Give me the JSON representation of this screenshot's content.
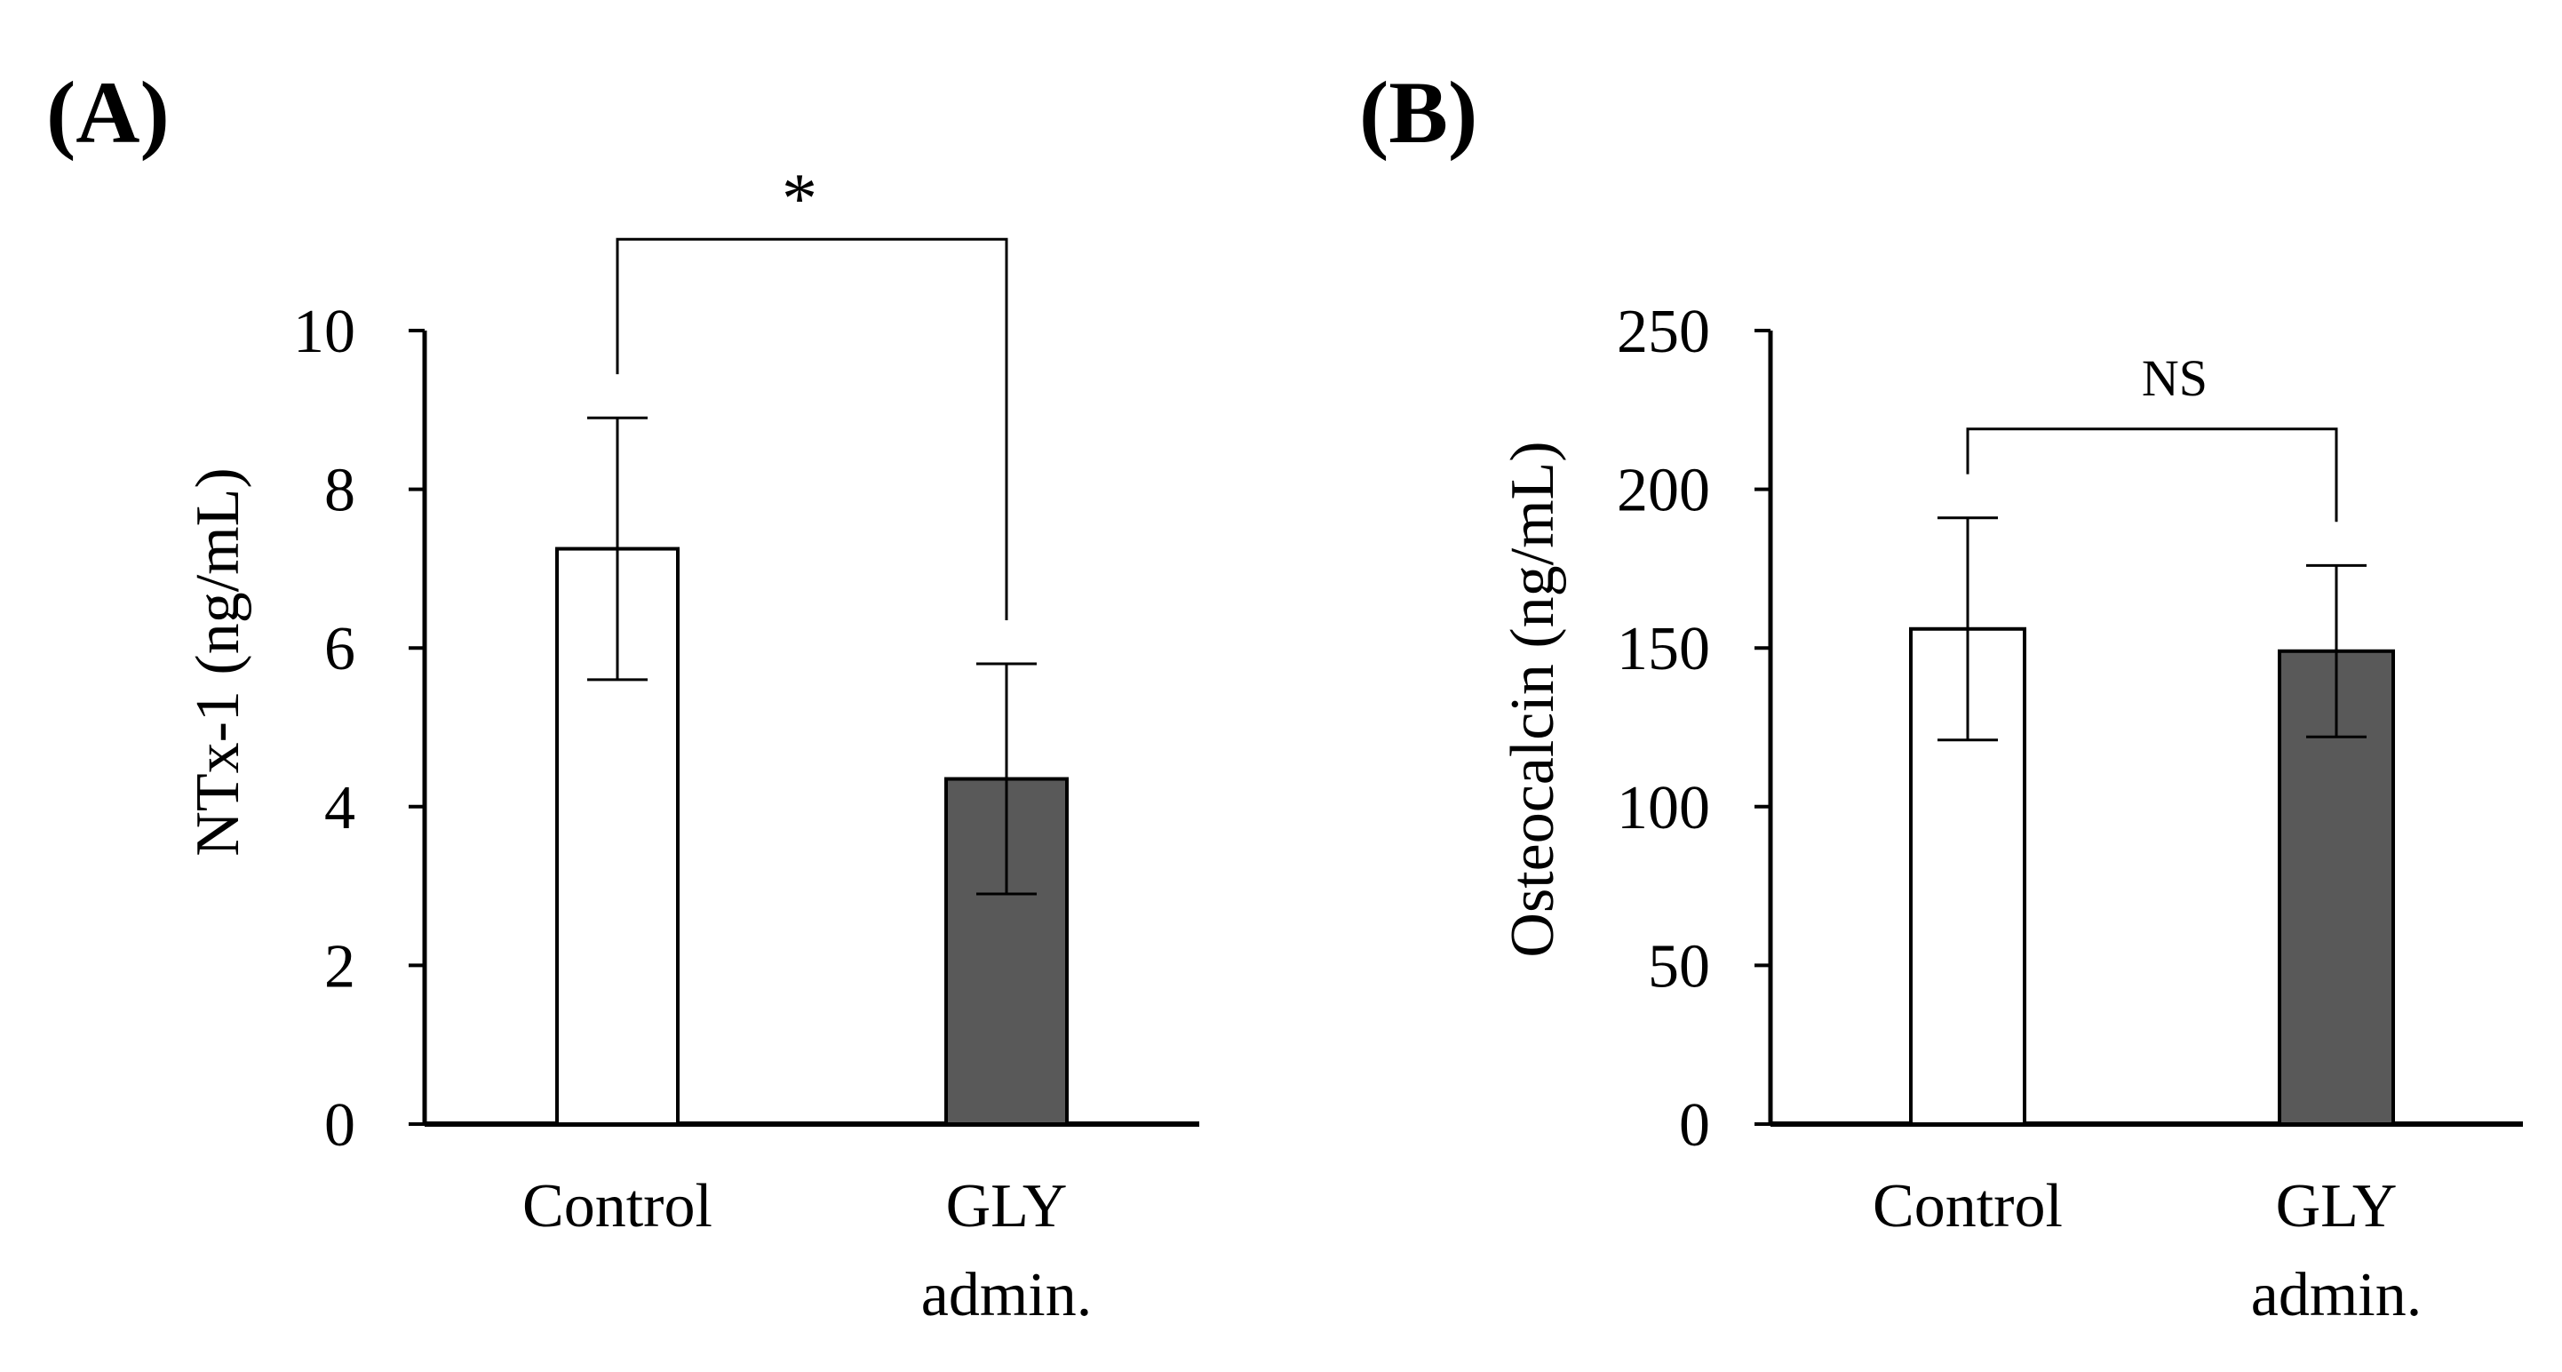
{
  "colors": {
    "axis": "#000000",
    "control_fill": "#ffffff",
    "gly_fill": "#595959"
  },
  "chart_data": [
    {
      "panel": "(A)",
      "type": "bar",
      "ylabel": "NTx-1 (ng/mL)",
      "ylim": [
        0,
        10
      ],
      "yticks": [
        "0",
        "2",
        "4",
        "6",
        "8",
        "10"
      ],
      "categories": [
        {
          "line1": "Control",
          "line2": ""
        },
        {
          "line1": "GLY",
          "line2": "admin."
        }
      ],
      "values": [
        7.25,
        4.35
      ],
      "errors": [
        1.65,
        1.45
      ],
      "significance": {
        "label": "*",
        "bracket_top": 11.15
      }
    },
    {
      "panel": "(B)",
      "type": "bar",
      "ylabel": "Osteocalcin (ng/mL)",
      "ylim": [
        0,
        250
      ],
      "yticks": [
        "0",
        "50",
        "100",
        "150",
        "200",
        "250"
      ],
      "categories": [
        {
          "line1": "Control",
          "line2": ""
        },
        {
          "line1": "GLY",
          "line2": "admin."
        }
      ],
      "values": [
        156,
        149
      ],
      "errors": [
        35,
        27
      ],
      "significance": {
        "label": "NS",
        "bracket_top": 219
      }
    }
  ]
}
